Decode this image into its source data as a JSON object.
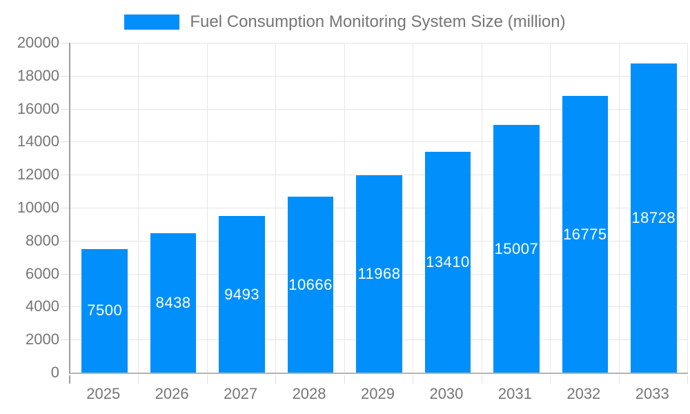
{
  "chart_data": {
    "type": "bar",
    "title": "Fuel Consumption Monitoring System Size (million)",
    "categories": [
      "2025",
      "2026",
      "2027",
      "2028",
      "2029",
      "2030",
      "2031",
      "2032",
      "2033"
    ],
    "series": [
      {
        "name": "Fuel Consumption Monitoring System Size (million)",
        "color": "#008ffb",
        "values": [
          7500,
          8438,
          9493,
          10666,
          11968,
          13410,
          15007,
          16775,
          18728
        ]
      }
    ],
    "xlabel": "",
    "ylabel": "",
    "ylim": [
      0,
      20000
    ],
    "ytick_step": 2000,
    "ytick_labels": [
      "0",
      "2000",
      "4000",
      "6000",
      "8000",
      "10000",
      "12000",
      "14000",
      "16000",
      "18000",
      "20000"
    ],
    "grid": true,
    "legend_position": "top",
    "bar_label_color": "#ffffff",
    "axis_label_color": "#757575"
  }
}
